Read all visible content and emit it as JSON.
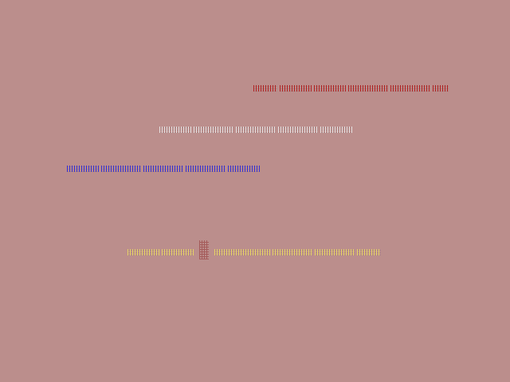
{
  "background_color": "#bb8e8c",
  "lines": [
    {
      "color": "#b01010"
    },
    {
      "color": "#f0f0f0"
    },
    {
      "color": "#2020e0"
    },
    {
      "color": "#f0e060"
    }
  ]
}
